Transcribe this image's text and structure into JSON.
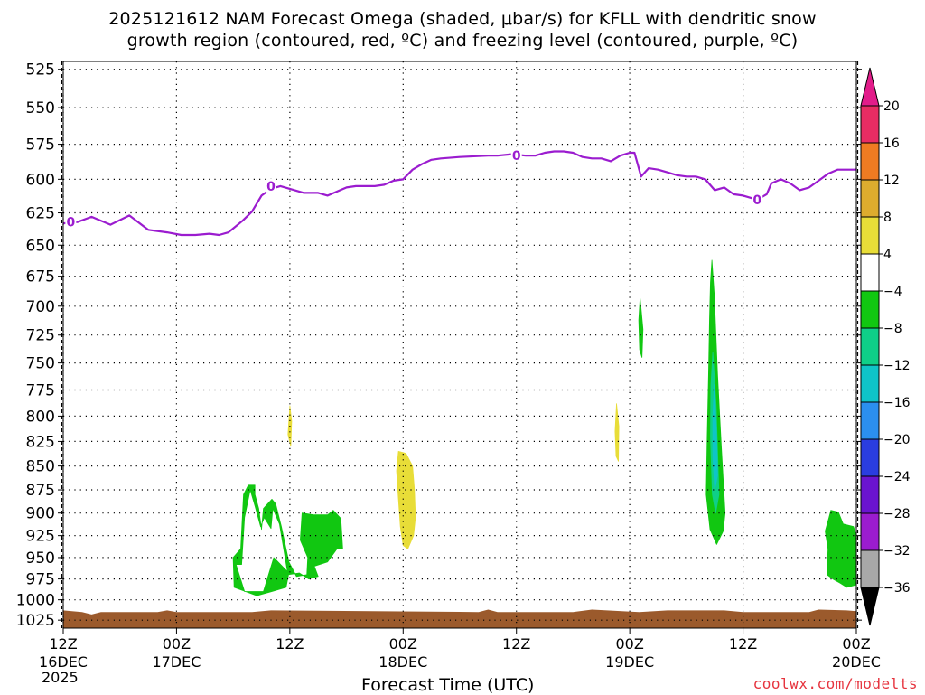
{
  "title": {
    "line1": "2025121612 NAM Forecast Omega (shaded, μbar/s) for KFLL with dendritic snow",
    "line2": "growth region (contoured, red, ºC) and freezing level (contoured, purple, ºC)"
  },
  "chart_data": {
    "type": "contour",
    "xlabel": "Forecast Time (UTC)",
    "ylabel": "",
    "credit": "coolwx.com/modelts",
    "x_range_hours": [
      0,
      84
    ],
    "y_range_hpa": [
      1035,
      520
    ],
    "y_scale": "log-pressure",
    "y_ticks": [
      525,
      550,
      575,
      600,
      625,
      650,
      675,
      700,
      725,
      750,
      775,
      800,
      825,
      850,
      875,
      900,
      925,
      950,
      975,
      1000,
      1025
    ],
    "x_ticks": [
      {
        "hour": 0,
        "label1": "12Z",
        "label2": "16DEC"
      },
      {
        "hour": 12,
        "label1": "00Z",
        "label2": "17DEC"
      },
      {
        "hour": 24,
        "label1": "12Z",
        "label2": ""
      },
      {
        "hour": 36,
        "label1": "00Z",
        "label2": "18DEC"
      },
      {
        "hour": 48,
        "label1": "12Z",
        "label2": ""
      },
      {
        "hour": 60,
        "label1": "00Z",
        "label2": "19DEC"
      },
      {
        "hour": 72,
        "label1": "12Z",
        "label2": ""
      },
      {
        "hour": 84,
        "label1": "00Z",
        "label2": "20DEC"
      }
    ],
    "year_label": "2025",
    "grid": true,
    "freezing_level": {
      "color": "#9b1ccf",
      "label": "0",
      "label_points": [
        [
          0.8,
          632
        ],
        [
          22,
          605
        ],
        [
          48,
          583
        ],
        [
          73.5,
          615
        ]
      ],
      "points": [
        [
          0,
          633
        ],
        [
          1.5,
          632
        ],
        [
          3,
          628
        ],
        [
          5,
          634
        ],
        [
          7,
          627
        ],
        [
          9,
          638
        ],
        [
          11,
          640
        ],
        [
          12.5,
          642
        ],
        [
          14,
          642
        ],
        [
          15.5,
          641
        ],
        [
          16.5,
          642
        ],
        [
          17.5,
          640
        ],
        [
          19,
          631
        ],
        [
          20,
          624
        ],
        [
          21,
          612
        ],
        [
          22,
          607
        ],
        [
          23,
          605
        ],
        [
          24,
          607
        ],
        [
          25.5,
          610
        ],
        [
          27,
          610
        ],
        [
          28,
          612
        ],
        [
          29,
          609
        ],
        [
          30,
          606
        ],
        [
          31,
          605
        ],
        [
          33,
          605
        ],
        [
          34,
          604
        ],
        [
          35,
          601
        ],
        [
          36,
          600
        ],
        [
          37,
          593
        ],
        [
          38,
          589
        ],
        [
          39,
          586
        ],
        [
          40,
          585
        ],
        [
          42,
          584
        ],
        [
          45,
          583
        ],
        [
          46,
          583
        ],
        [
          47.5,
          582
        ],
        [
          49,
          583
        ],
        [
          50,
          583
        ],
        [
          51,
          581
        ],
        [
          52,
          580
        ],
        [
          53,
          580
        ],
        [
          54,
          581
        ],
        [
          55,
          584
        ],
        [
          56,
          585
        ],
        [
          57,
          585
        ],
        [
          58,
          587
        ],
        [
          59,
          583
        ],
        [
          60,
          581
        ],
        [
          60.5,
          581
        ],
        [
          61.2,
          598
        ],
        [
          62,
          592
        ],
        [
          63,
          593
        ],
        [
          64,
          595
        ],
        [
          65,
          597
        ],
        [
          66,
          598
        ],
        [
          67,
          598
        ],
        [
          68,
          600
        ],
        [
          69,
          608
        ],
        [
          70,
          606
        ],
        [
          71,
          611
        ],
        [
          72,
          612
        ],
        [
          73,
          614
        ],
        [
          74,
          613
        ],
        [
          74.5,
          611
        ],
        [
          75,
          603
        ],
        [
          76,
          600
        ],
        [
          77,
          603
        ],
        [
          78,
          608
        ],
        [
          79,
          606
        ],
        [
          80,
          601
        ],
        [
          81,
          596
        ],
        [
          82,
          593
        ],
        [
          83,
          593
        ],
        [
          84,
          593
        ]
      ]
    },
    "omega_regions": [
      {
        "name": "down-4-8-a",
        "bin": "4 to 8",
        "color": "#e8dd38",
        "poly": [
          [
            24,
            790
          ],
          [
            24.2,
            805
          ],
          [
            24.1,
            830
          ],
          [
            23.8,
            818
          ]
        ]
      },
      {
        "name": "down-4-8-b",
        "bin": "4 to 8",
        "color": "#e8dd38",
        "poly": [
          [
            35.5,
            835
          ],
          [
            36.3,
            837
          ],
          [
            37,
            850
          ],
          [
            37.2,
            875
          ],
          [
            37.3,
            905
          ],
          [
            37.1,
            925
          ],
          [
            36.5,
            940
          ],
          [
            36,
            936
          ],
          [
            35.7,
            915
          ],
          [
            35.5,
            885
          ],
          [
            35.3,
            855
          ]
        ]
      },
      {
        "name": "down-4-8-c",
        "bin": "4 to 8",
        "color": "#e8dd38",
        "poly": [
          [
            58.6,
            788
          ],
          [
            58.85,
            810
          ],
          [
            58.8,
            845
          ],
          [
            58.55,
            840
          ],
          [
            58.45,
            815
          ]
        ]
      },
      {
        "name": "up-4-8-a",
        "bin": "-8 to -4",
        "color": "#11c711",
        "poly": [
          [
            18.3,
            958
          ],
          [
            18.9,
            958
          ],
          [
            19.2,
            905
          ],
          [
            19.8,
            875
          ],
          [
            20.3,
            892
          ],
          [
            20.9,
            915
          ],
          [
            21.3,
            905
          ],
          [
            22,
            917
          ],
          [
            22.2,
            895
          ],
          [
            22.9,
            912
          ],
          [
            23.8,
            970
          ],
          [
            25,
            968
          ],
          [
            26,
            975
          ],
          [
            27,
            972
          ],
          [
            26.6,
            960
          ],
          [
            28,
            955
          ],
          [
            29,
            940
          ],
          [
            29.6,
            940
          ],
          [
            29.4,
            906
          ],
          [
            28.6,
            897
          ],
          [
            28,
            902
          ],
          [
            26.5,
            902
          ],
          [
            25.3,
            900
          ],
          [
            25.1,
            930
          ],
          [
            25.9,
            950
          ],
          [
            25.8,
            970
          ],
          [
            24.7,
            972
          ],
          [
            23.9,
            955
          ],
          [
            23.1,
            915
          ],
          [
            22.5,
            890
          ],
          [
            22.1,
            885
          ],
          [
            21.2,
            895
          ],
          [
            21,
            918
          ],
          [
            20.7,
            895
          ],
          [
            20.3,
            880
          ],
          [
            20.3,
            870
          ],
          [
            19.6,
            870
          ],
          [
            19.1,
            880
          ],
          [
            18.8,
            940
          ],
          [
            18,
            950
          ],
          [
            18.1,
            985
          ],
          [
            20.5,
            995
          ],
          [
            22.1,
            990
          ],
          [
            23.6,
            985
          ],
          [
            23.9,
            968
          ],
          [
            22.3,
            950
          ],
          [
            21.2,
            990
          ],
          [
            19.2,
            990
          ]
        ]
      },
      {
        "name": "up-4-8-b",
        "bin": "-8 to -4",
        "color": "#11c711",
        "poly": [
          [
            61.1,
            693
          ],
          [
            61.4,
            720
          ],
          [
            61.3,
            745
          ],
          [
            61.05,
            738
          ],
          [
            60.95,
            712
          ]
        ]
      },
      {
        "name": "up-4-8-c",
        "bin": "-8 to -4",
        "color": "#11c711",
        "poly": [
          [
            68.7,
            662
          ],
          [
            68.95,
            690
          ],
          [
            69.3,
            760
          ],
          [
            69.7,
            830
          ],
          [
            70.1,
            900
          ],
          [
            69.9,
            920
          ],
          [
            69.2,
            935
          ],
          [
            68.5,
            918
          ],
          [
            68.1,
            880
          ],
          [
            68.2,
            820
          ],
          [
            68.35,
            760
          ],
          [
            68.45,
            710
          ],
          [
            68.55,
            680
          ]
        ]
      },
      {
        "name": "up-8-12-c",
        "bin": "-12 to -8",
        "color": "#0fcf88",
        "poly": [
          [
            68.8,
            740
          ],
          [
            69.15,
            790
          ],
          [
            69.45,
            880
          ],
          [
            69.1,
            900
          ],
          [
            68.75,
            880
          ],
          [
            68.55,
            820
          ],
          [
            68.6,
            770
          ]
        ]
      },
      {
        "name": "up-12-16-c",
        "bin": "-16 to -12",
        "color": "#0fc4c8",
        "poly": [
          [
            68.95,
            770
          ],
          [
            69.2,
            820
          ],
          [
            69.3,
            860
          ],
          [
            69.0,
            875
          ],
          [
            68.8,
            840
          ],
          [
            68.8,
            800
          ]
        ]
      },
      {
        "name": "up-4-8-d",
        "bin": "-8 to -4",
        "color": "#11c711",
        "poly": [
          [
            81.3,
            897
          ],
          [
            82.1,
            899
          ],
          [
            82.6,
            912
          ],
          [
            83.7,
            915
          ],
          [
            84,
            925
          ],
          [
            84,
            982
          ],
          [
            83,
            985
          ],
          [
            82.3,
            980
          ],
          [
            81.5,
            975
          ],
          [
            80.9,
            970
          ],
          [
            81,
            940
          ],
          [
            80.7,
            920
          ],
          [
            81.1,
            905
          ]
        ]
      }
    ],
    "ground": {
      "color": "#9b5a2c",
      "points": [
        [
          0,
          1013
        ],
        [
          2,
          1015
        ],
        [
          3,
          1018
        ],
        [
          4,
          1015
        ],
        [
          10,
          1015
        ],
        [
          11,
          1013
        ],
        [
          12,
          1015
        ],
        [
          20,
          1015
        ],
        [
          22,
          1013
        ],
        [
          44,
          1015
        ],
        [
          45,
          1012
        ],
        [
          46,
          1015
        ],
        [
          54,
          1015
        ],
        [
          56,
          1012
        ],
        [
          61,
          1015
        ],
        [
          64,
          1013
        ],
        [
          70,
          1013
        ],
        [
          72,
          1015
        ],
        [
          79,
          1015
        ],
        [
          80,
          1012
        ],
        [
          83,
          1013
        ],
        [
          84,
          1014
        ]
      ]
    },
    "colorbar": {
      "labels": [
        "20",
        "16",
        "12",
        "8",
        "4",
        "−4",
        "−8",
        "−12",
        "−16",
        "−20",
        "−24",
        "−28",
        "−32",
        "−36"
      ],
      "colors": [
        "#e82c63",
        "#ef7b22",
        "#ddac2e",
        "#e8dd38",
        "#ffffff",
        "#11c711",
        "#0fcf88",
        "#0fc4c8",
        "#2b8fef",
        "#2a3de0",
        "#6a14d0",
        "#9b1ccf",
        "#a8a8a8"
      ],
      "top_cap_color": "#e21c8a",
      "bottom_cap_color": "#000000"
    }
  }
}
